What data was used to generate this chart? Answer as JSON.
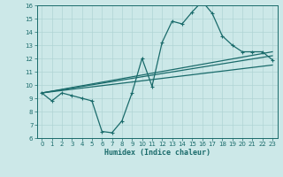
{
  "xlabel": "Humidex (Indice chaleur)",
  "xlim": [
    -0.5,
    23.5
  ],
  "ylim": [
    6,
    16
  ],
  "yticks": [
    6,
    7,
    8,
    9,
    10,
    11,
    12,
    13,
    14,
    15,
    16
  ],
  "xticks": [
    0,
    1,
    2,
    3,
    4,
    5,
    6,
    7,
    8,
    9,
    10,
    11,
    12,
    13,
    14,
    15,
    16,
    17,
    18,
    19,
    20,
    21,
    22,
    23
  ],
  "background_color": "#cce8e8",
  "grid_color": "#b0d4d4",
  "line_color": "#1a6b6b",
  "line1_x": [
    0,
    1,
    2,
    3,
    4,
    5,
    6,
    7,
    8,
    9,
    10,
    11,
    12,
    13,
    14,
    15,
    16,
    17,
    18,
    19,
    20,
    21,
    22,
    23
  ],
  "line1_y": [
    9.4,
    8.8,
    9.4,
    9.2,
    9.0,
    8.8,
    6.5,
    6.4,
    7.3,
    9.4,
    12.0,
    9.9,
    13.2,
    14.8,
    14.6,
    15.5,
    16.3,
    15.4,
    13.7,
    13.0,
    12.5,
    12.5,
    12.5,
    11.9
  ],
  "line2_x": [
    0,
    23
  ],
  "line2_y": [
    9.4,
    12.5
  ],
  "line3_x": [
    0,
    23
  ],
  "line3_y": [
    9.4,
    12.2
  ],
  "line4_x": [
    0,
    23
  ],
  "line4_y": [
    9.4,
    11.5
  ]
}
